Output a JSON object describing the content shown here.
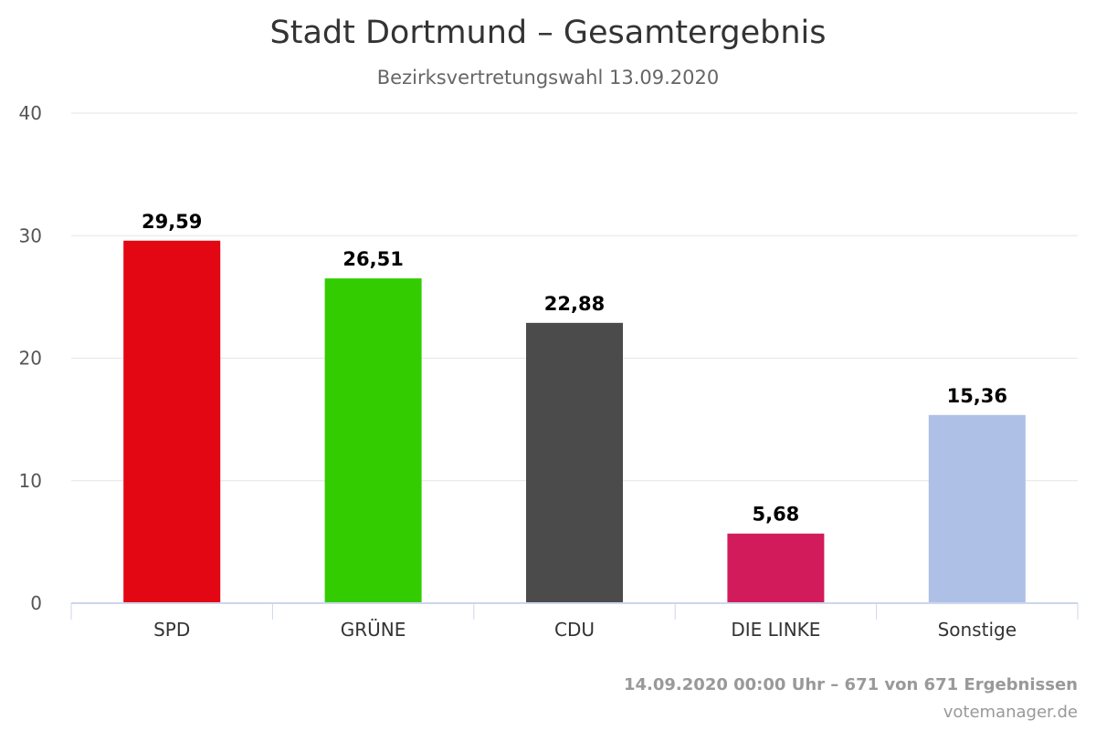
{
  "chart_data": {
    "type": "bar",
    "title": "Stadt Dortmund – Gesamtergebnis",
    "subtitle": "Bezirksvertretungswahl 13.09.2020",
    "categories": [
      "SPD",
      "GRÜNE",
      "CDU",
      "DIE LINKE",
      "Sonstige"
    ],
    "values": [
      29.59,
      26.51,
      22.88,
      5.68,
      15.36
    ],
    "value_labels": [
      "29,59",
      "26,51",
      "22,88",
      "5,68",
      "15,36"
    ],
    "colors": [
      "#e30613",
      "#33cc00",
      "#4b4b4b",
      "#d11b5b",
      "#aec0e6"
    ],
    "ylim": [
      0,
      40
    ],
    "yticks": [
      "0",
      "10",
      "20",
      "30",
      "40"
    ],
    "ytick_values": [
      0,
      10,
      20,
      30,
      40
    ],
    "grid": true,
    "legend": "none"
  },
  "footer": {
    "status": "14.09.2020 00:00 Uhr – 671 von 671 Ergebnissen",
    "credit": "votemanager.de"
  }
}
